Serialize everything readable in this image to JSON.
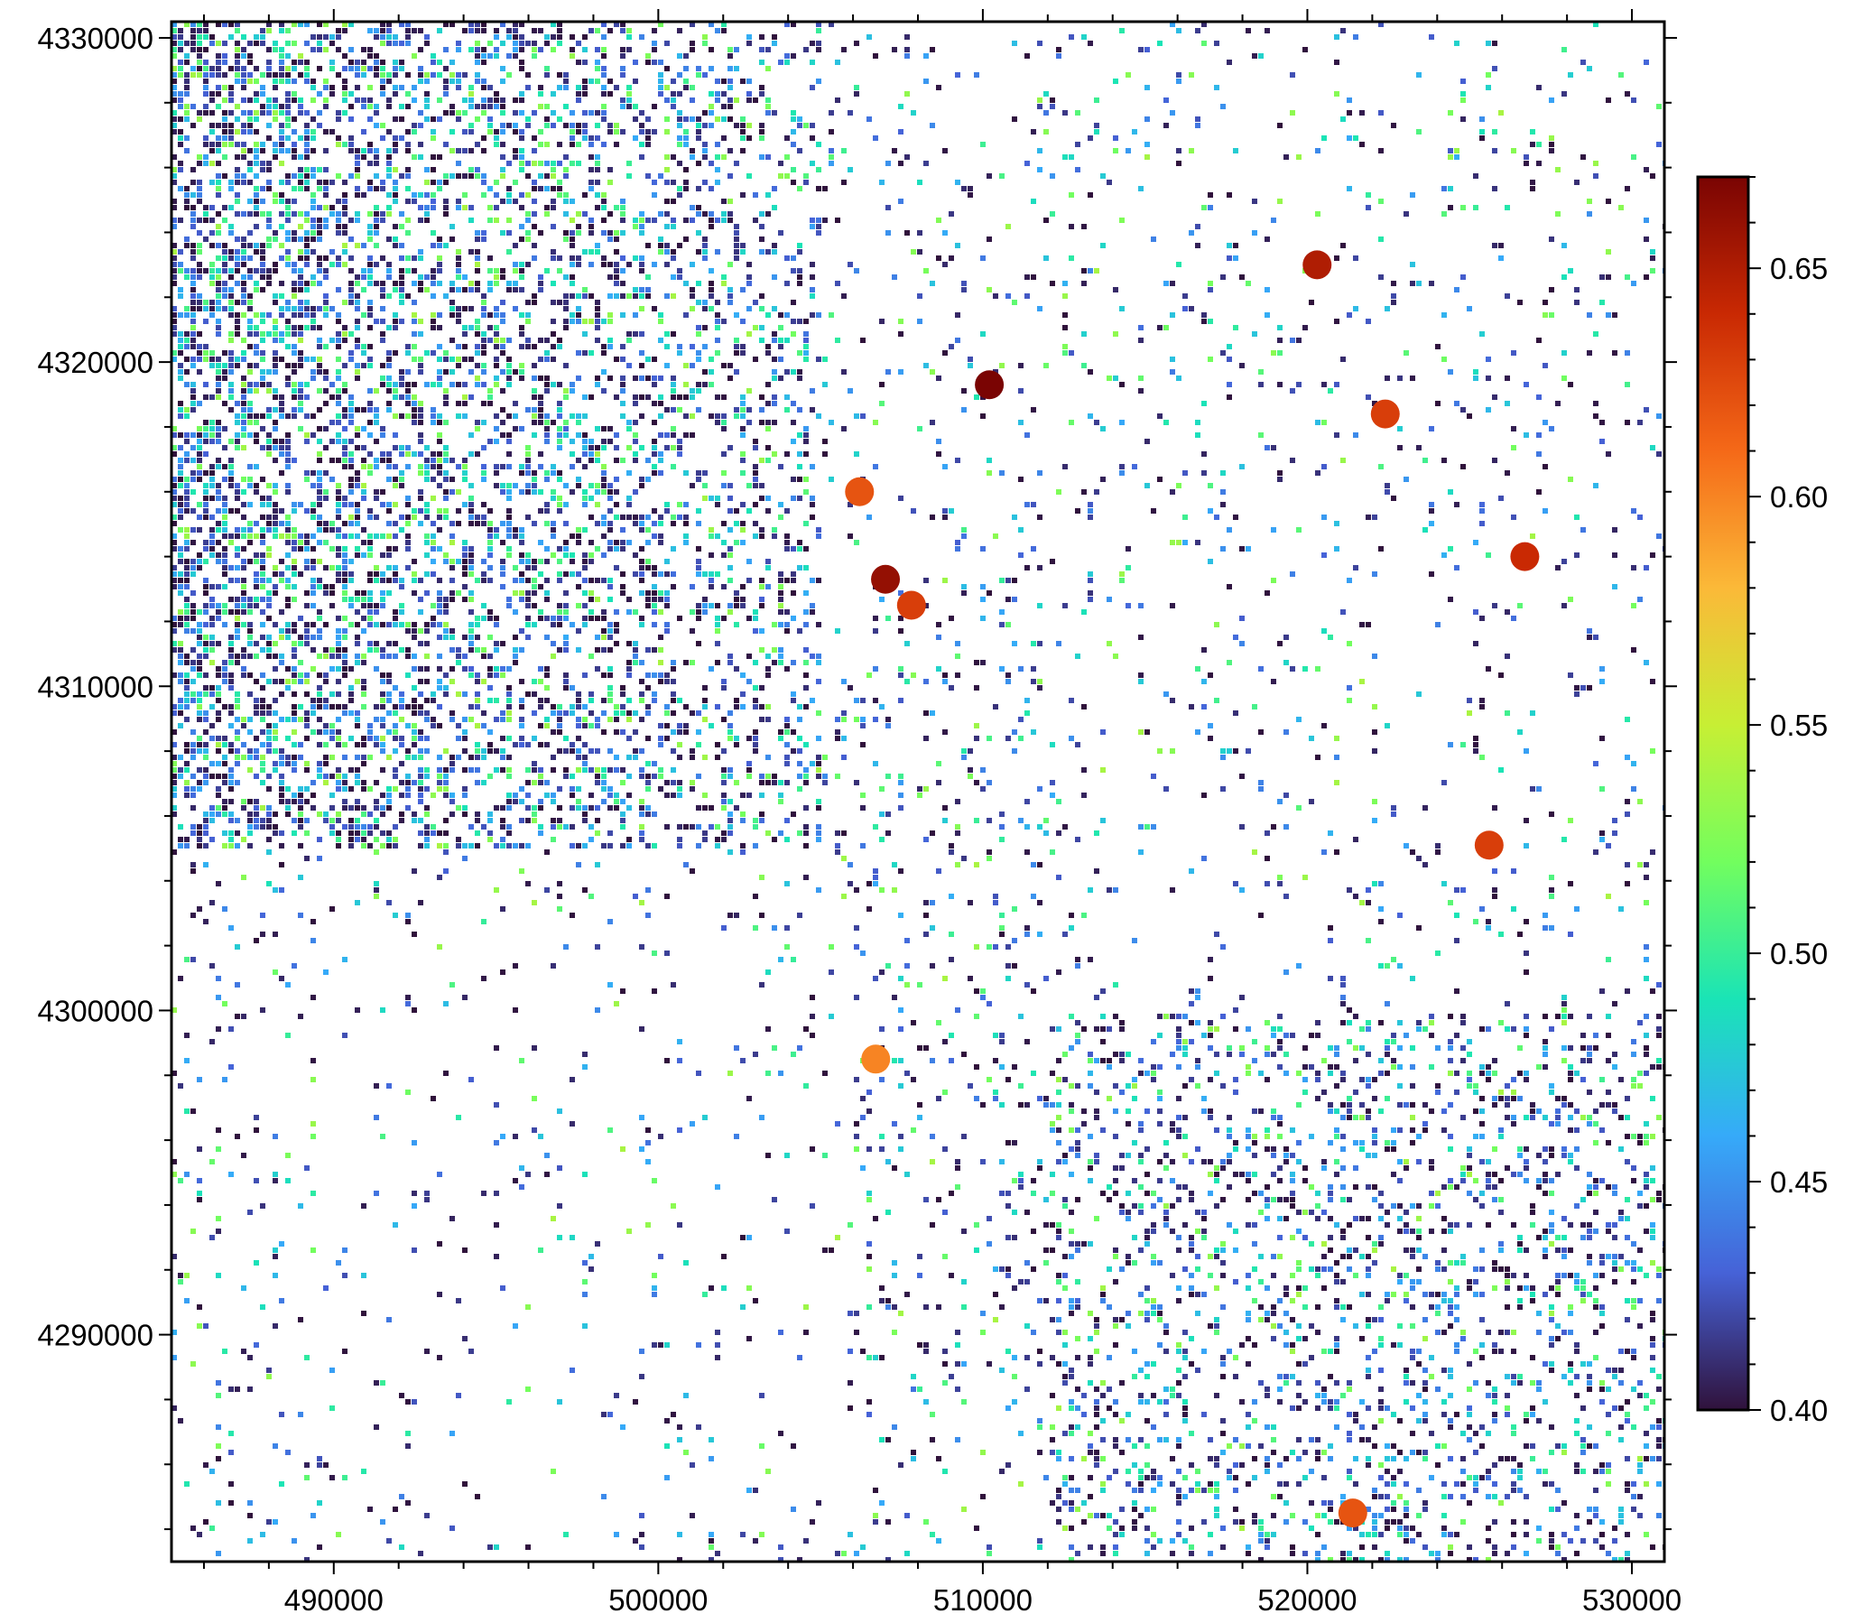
{
  "map": {
    "x_range": [
      485000,
      531000
    ],
    "y_range": [
      4283000,
      4330500
    ],
    "x_ticks": [
      {
        "value": 490000,
        "label": "490000"
      },
      {
        "value": 500000,
        "label": "500000"
      },
      {
        "value": 510000,
        "label": "510000"
      },
      {
        "value": 520000,
        "label": "520000"
      },
      {
        "value": 530000,
        "label": "530000"
      }
    ],
    "y_ticks": [
      {
        "value": 4290000,
        "label": "4290000"
      },
      {
        "value": 4300000,
        "label": "4300000"
      },
      {
        "value": 4310000,
        "label": "4310000"
      },
      {
        "value": 4320000,
        "label": "4320000"
      },
      {
        "value": 4330000,
        "label": "4330000"
      }
    ],
    "minor_tick_step": 2000,
    "raster_value_range": [
      0.4,
      0.67
    ],
    "notable_hotspots": [
      {
        "x": 510200,
        "y": 4319300,
        "value": 0.67
      },
      {
        "x": 507800,
        "y": 4312500,
        "value": 0.63
      },
      {
        "x": 507000,
        "y": 4313300,
        "value": 0.66
      },
      {
        "x": 506200,
        "y": 4316000,
        "value": 0.62
      },
      {
        "x": 525600,
        "y": 4305100,
        "value": 0.63
      },
      {
        "x": 520300,
        "y": 4323000,
        "value": 0.65
      },
      {
        "x": 522400,
        "y": 4318400,
        "value": 0.63
      },
      {
        "x": 526700,
        "y": 4314000,
        "value": 0.64
      },
      {
        "x": 506700,
        "y": 4298500,
        "value": 0.6
      },
      {
        "x": 521400,
        "y": 4284500,
        "value": 0.62
      }
    ]
  },
  "colorbar": {
    "min": 0.4,
    "max": 0.67,
    "ticks": [
      {
        "value": 0.4,
        "label": "0.40"
      },
      {
        "value": 0.45,
        "label": "0.45"
      },
      {
        "value": 0.5,
        "label": "0.50"
      },
      {
        "value": 0.55,
        "label": "0.55"
      },
      {
        "value": 0.6,
        "label": "0.60"
      },
      {
        "value": 0.65,
        "label": "0.65"
      }
    ],
    "colors": [
      "#30123b",
      "#4662d7",
      "#36aaf9",
      "#1ae4b6",
      "#72fe5e",
      "#c7ef34",
      "#fbb938",
      "#f56918",
      "#c92903",
      "#7a0403"
    ]
  }
}
